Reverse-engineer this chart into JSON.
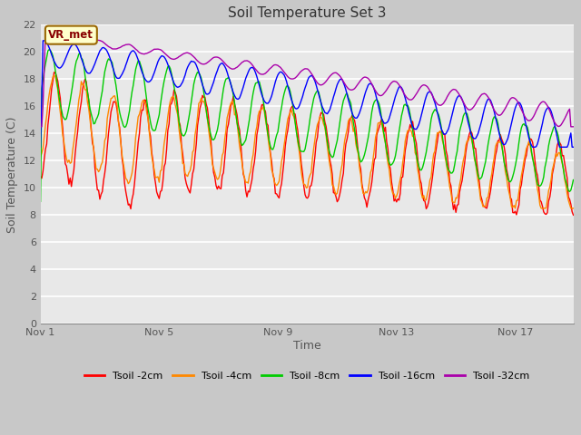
{
  "title": "Soil Temperature Set 3",
  "xlabel": "Time",
  "ylabel": "Soil Temperature (C)",
  "ylim": [
    0,
    22
  ],
  "yticks": [
    0,
    2,
    4,
    6,
    8,
    10,
    12,
    14,
    16,
    18,
    20,
    22
  ],
  "xtick_labels": [
    "Nov 1",
    "Nov 5",
    "Nov 9",
    "Nov 13",
    "Nov 17"
  ],
  "xtick_positions": [
    0,
    96,
    192,
    288,
    384
  ],
  "total_points": 432,
  "fig_bg": "#c8c8c8",
  "plot_bg": "#e8e8e8",
  "grid_color": "#ffffff",
  "annotation_text": "VR_met",
  "annotation_bg": "#ffffcc",
  "annotation_border": "#996600",
  "annotation_text_color": "#880000",
  "legend_labels": [
    "Tsoil -2cm",
    "Tsoil -4cm",
    "Tsoil -8cm",
    "Tsoil -16cm",
    "Tsoil -32cm"
  ],
  "line_colors": [
    "#ff0000",
    "#ff8800",
    "#00cc00",
    "#0000ff",
    "#aa00aa"
  ],
  "line_width": 1.0
}
